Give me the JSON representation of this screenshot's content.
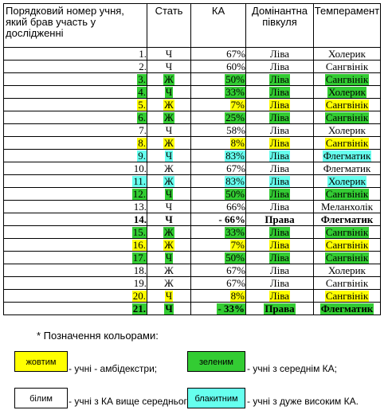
{
  "headers": [
    "Порядковий номер учня, який брав участь у дослідженні",
    "Стать",
    "КА",
    "Домінантна півкуля",
    "Темперамент"
  ],
  "rows": [
    {
      "num": "1.",
      "sex": "Ч",
      "ka": "67%",
      "hem": "Ліва",
      "temp": "Холерик",
      "color": "white",
      "bold": false
    },
    {
      "num": "2.",
      "sex": "Ч",
      "ka": "60%",
      "hem": "Ліва",
      "temp": "Сангвінік",
      "color": "white",
      "bold": false
    },
    {
      "num": "3.",
      "sex": "Ж",
      "ka": "50%",
      "hem": "Ліва",
      "temp": "Сангвінік",
      "color": "green",
      "bold": false
    },
    {
      "num": "4.",
      "sex": "Ч",
      "ka": "33%",
      "hem": "Ліва",
      "temp": "Холерик",
      "color": "green",
      "bold": false
    },
    {
      "num": "5.",
      "sex": "Ж",
      "ka": "7%",
      "hem": "Ліва",
      "temp": "Сангвінік",
      "color": "yellow",
      "bold": false
    },
    {
      "num": "6.",
      "sex": "Ж",
      "ka": "25%",
      "hem": "Ліва",
      "temp": "Сангвінік",
      "color": "green",
      "bold": false
    },
    {
      "num": "7.",
      "sex": "Ч",
      "ka": "58%",
      "hem": "Ліва",
      "temp": "Холерик",
      "color": "white",
      "bold": false
    },
    {
      "num": "8.",
      "sex": "Ж",
      "ka": "8%",
      "hem": "Ліва",
      "temp": "Сангвінік",
      "color": "yellow",
      "bold": false
    },
    {
      "num": "9.",
      "sex": "Ч",
      "ka": "83%",
      "hem": "Ліва",
      "temp": "Флегматик",
      "color": "cyan",
      "bold": false
    },
    {
      "num": "10.",
      "sex": "Ж",
      "ka": "67%",
      "hem": "Ліва",
      "temp": "Флегматик",
      "color": "white",
      "bold": false
    },
    {
      "num": "11.",
      "sex": "Ж",
      "ka": "83%",
      "hem": "Ліва",
      "temp": "Холерик",
      "color": "cyan",
      "bold": false
    },
    {
      "num": "12.",
      "sex": "Ч",
      "ka": "50%",
      "hem": "Ліва",
      "temp": "Сангвінік",
      "color": "green",
      "bold": false
    },
    {
      "num": "13.",
      "sex": "Ч",
      "ka": "66%",
      "hem": "Ліва",
      "temp": "Меланхолік",
      "color": "white",
      "bold": false
    },
    {
      "num": "14.",
      "sex": "Ч",
      "ka": "- 66%",
      "hem": "Права",
      "temp": "Флегматик",
      "color": "white",
      "bold": true
    },
    {
      "num": "15.",
      "sex": "Ж",
      "ka": "33%",
      "hem": "Ліва",
      "temp": "Сангвінік",
      "color": "green",
      "bold": false
    },
    {
      "num": "16.",
      "sex": "Ж",
      "ka": "7%",
      "hem": "Ліва",
      "temp": "Сангвінік",
      "color": "yellow",
      "bold": false
    },
    {
      "num": "17.",
      "sex": "Ч",
      "ka": "50%",
      "hem": "Ліва",
      "temp": "Сангвінік",
      "color": "green",
      "bold": false
    },
    {
      "num": "18.",
      "sex": "Ж",
      "ka": "67%",
      "hem": "Ліва",
      "temp": "Холерик",
      "color": "white",
      "bold": false
    },
    {
      "num": "19.",
      "sex": "Ж",
      "ka": "67%",
      "hem": "Ліва",
      "temp": "Сангвінік",
      "color": "white",
      "bold": false
    },
    {
      "num": "20.",
      "sex": "Ч",
      "ka": "8%",
      "hem": "Ліва",
      "temp": "Сангвінік",
      "color": "yellow",
      "bold": false
    },
    {
      "num": "21.",
      "sex": "Ч",
      "ka": "- 33%",
      "hem": "Права",
      "temp": "Флегматик",
      "color": "green",
      "bold": true
    }
  ],
  "legend": {
    "title": "* Позначення кольорами:",
    "yellow_box": "жовтим",
    "yellow_text": "- учні - амбідекстри;",
    "green_box": "зеленим",
    "green_text": "- учні з середнім КА;",
    "white_box": "білим",
    "white_text": "- учні з КА вище середнього;",
    "cyan_box": "блакитним",
    "cyan_text": "- учні з дуже високим КА."
  },
  "colors": {
    "yellow": "#ffff00",
    "green": "#33cc33",
    "cyan": "#66ffee",
    "white": "#ffffff"
  }
}
